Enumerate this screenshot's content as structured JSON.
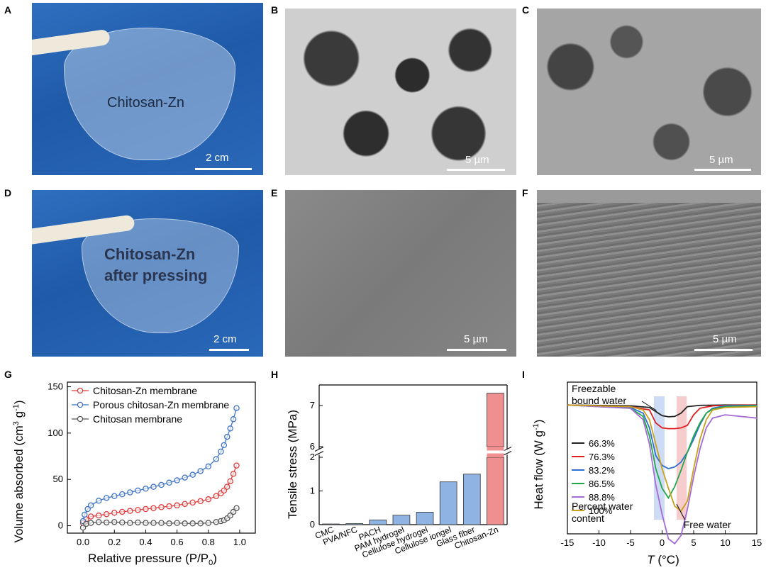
{
  "panel_labels": {
    "A": "A",
    "B": "B",
    "C": "C",
    "D": "D",
    "E": "E",
    "F": "F",
    "G": "G",
    "H": "H",
    "I": "I"
  },
  "photo_a": {
    "text": "Chitosan-Zn",
    "scale": "2 cm"
  },
  "photo_d": {
    "line1": "Chitosan-Zn",
    "line2": "after pressing",
    "scale": "2 cm"
  },
  "sem_b": {
    "scale": "5 µm"
  },
  "sem_c": {
    "scale": "5 µm"
  },
  "sem_e": {
    "scale": "5 µm"
  },
  "sem_f": {
    "scale": "5 µm"
  },
  "colors": {
    "red": "#e03c3c",
    "blue": "#3f74c6",
    "gray": "#555555",
    "bar_blue": "#8fb4e3",
    "bar_red": "#ef8f8f"
  },
  "chart_data": [
    {
      "type": "scatter",
      "panel": "G",
      "xlabel": "Relative pressure (P/P",
      "xlabel_sub": "0",
      "xlabel_end": ")",
      "ylabel": "Volume absorbed (cm",
      "ylabel_sup": "3",
      "ylabel_mid": " g",
      "ylabel_sup2": "-1",
      "ylabel_end": ")",
      "xlim": [
        -0.1,
        1.1
      ],
      "ylim": [
        -8,
        155
      ],
      "xticks": [
        "0.0",
        "0.2",
        "0.4",
        "0.6",
        "0.8",
        "1.0"
      ],
      "xtick_values": [
        0,
        0.2,
        0.4,
        0.6,
        0.8,
        1.0
      ],
      "yticks": [
        "0",
        "50",
        "100",
        "150"
      ],
      "ytick_values": [
        0,
        50,
        100,
        150
      ],
      "series": [
        {
          "name": "Chitosan-Zn membrane",
          "color": "#e03c3c",
          "x": [
            0,
            0.02,
            0.05,
            0.1,
            0.15,
            0.2,
            0.25,
            0.3,
            0.35,
            0.4,
            0.45,
            0.5,
            0.55,
            0.6,
            0.65,
            0.7,
            0.75,
            0.8,
            0.85,
            0.88,
            0.9,
            0.92,
            0.94,
            0.96,
            0.98
          ],
          "y": [
            3,
            7,
            10,
            11,
            12.5,
            14,
            15,
            16,
            17,
            18,
            19,
            20,
            21,
            22,
            23.5,
            25,
            26.5,
            28.5,
            32,
            35,
            38,
            42,
            48,
            56,
            65
          ]
        },
        {
          "name": "Porous chitosan-Zn membrane",
          "color": "#3f74c6",
          "x": [
            0,
            0.01,
            0.03,
            0.05,
            0.1,
            0.15,
            0.2,
            0.25,
            0.3,
            0.35,
            0.4,
            0.45,
            0.5,
            0.55,
            0.6,
            0.65,
            0.7,
            0.75,
            0.8,
            0.85,
            0.88,
            0.9,
            0.92,
            0.94,
            0.96,
            0.98
          ],
          "y": [
            5,
            12,
            18,
            22,
            27,
            30,
            32,
            34,
            36,
            38,
            40,
            42,
            44,
            46.5,
            49,
            52,
            55,
            59,
            64,
            72,
            80,
            87,
            96,
            105,
            115,
            127
          ]
        },
        {
          "name": "Chitosan membrane",
          "color": "#555555",
          "x": [
            0,
            0.02,
            0.05,
            0.1,
            0.15,
            0.2,
            0.25,
            0.3,
            0.35,
            0.4,
            0.45,
            0.5,
            0.55,
            0.6,
            0.65,
            0.7,
            0.75,
            0.8,
            0.85,
            0.88,
            0.9,
            0.92,
            0.94,
            0.96,
            0.98
          ],
          "y": [
            -2,
            2,
            3,
            4,
            3.5,
            4,
            3.5,
            3,
            3.5,
            3,
            3,
            3,
            2.5,
            3,
            2.5,
            2.5,
            2.5,
            3,
            4,
            5,
            6,
            8,
            11,
            15,
            19
          ]
        }
      ]
    },
    {
      "type": "bar",
      "panel": "H",
      "ylabel": "Tensile stress (MPa)",
      "categories": [
        "CMC",
        "PVA/NFC",
        "PACH",
        "PAM hydrogel",
        "Cellulose hydrogel",
        "Cellulose iongel",
        "Glass fiber",
        "Chitosan-Zn"
      ],
      "values": [
        0.02,
        0.03,
        0.14,
        0.28,
        0.37,
        1.27,
        1.5,
        7.3
      ],
      "colors": [
        "#8fb4e3",
        "#8fb4e3",
        "#8fb4e3",
        "#8fb4e3",
        "#8fb4e3",
        "#8fb4e3",
        "#8fb4e3",
        "#ef8f8f"
      ],
      "ylim_lower": [
        0,
        2
      ],
      "ylim_upper": [
        6,
        7.5
      ],
      "yticks": [
        "0",
        "1",
        "2",
        "6",
        "7"
      ],
      "ytick_values": [
        0,
        1,
        2,
        6,
        7
      ],
      "axis_break": true
    },
    {
      "type": "line",
      "panel": "I",
      "xlabel_italic": "T",
      "xlabel_rest": " (°C)",
      "ylabel": "Heat flow (W g",
      "ylabel_sup": "-1",
      "ylabel_end": ")",
      "xlim": [
        -15,
        15
      ],
      "xticks": [
        "-15",
        "-10",
        "-5",
        "0",
        "5",
        "10",
        "15"
      ],
      "xtick_values": [
        -15,
        -10,
        -5,
        0,
        5,
        10,
        15
      ],
      "annotations": {
        "bound": "Freezable",
        "bound2": "bound water",
        "free": "Free water",
        "legend_title1": "Percent water",
        "legend_title2": "content"
      },
      "series": [
        {
          "name": "66.3%",
          "color": "#222222",
          "x": [
            -15,
            -5,
            -2,
            -1,
            0,
            1,
            2,
            3,
            4,
            6,
            10,
            15
          ],
          "y": [
            0.1,
            0.15,
            0.25,
            0.5,
            0.75,
            0.82,
            0.8,
            0.6,
            0.2,
            0.12,
            0.1,
            0.1
          ]
        },
        {
          "name": "76.3%",
          "color": "#e02020",
          "x": [
            -15,
            -5,
            -2,
            -1,
            0,
            1,
            2,
            3,
            4,
            5,
            6,
            8,
            10,
            15
          ],
          "y": [
            0.1,
            0.2,
            0.4,
            1.2,
            1.5,
            1.55,
            1.55,
            1.5,
            1.35,
            0.7,
            0.3,
            0.15,
            0.12,
            0.1
          ]
        },
        {
          "name": "83.2%",
          "color": "#2e6fd1",
          "x": [
            -15,
            -5,
            -3,
            -2,
            -1,
            0,
            1,
            2,
            3,
            4,
            5,
            6,
            7,
            8,
            10,
            15
          ],
          "y": [
            0.1,
            0.25,
            0.6,
            1.5,
            3.2,
            3.8,
            4.0,
            3.9,
            3.6,
            3.0,
            2.2,
            1.3,
            0.6,
            0.3,
            0.15,
            0.12
          ]
        },
        {
          "name": "86.5%",
          "color": "#1fa84a",
          "x": [
            -15,
            -5,
            -3,
            -2,
            -1,
            0,
            1,
            2,
            3,
            4,
            5,
            6,
            7,
            8,
            10,
            15
          ],
          "y": [
            0.1,
            0.3,
            0.8,
            2.0,
            4.0,
            5.2,
            5.8,
            5.1,
            4.1,
            3.0,
            2.0,
            1.2,
            0.6,
            0.35,
            0.2,
            0.15
          ]
        },
        {
          "name": "88.8%",
          "color": "#a46bd6",
          "x": [
            -15,
            -5,
            -3,
            -2,
            -1,
            0,
            1,
            2,
            3,
            4,
            5,
            6,
            7,
            8,
            10,
            15
          ],
          "y": [
            0.1,
            0.3,
            1.0,
            2.5,
            5.0,
            6.8,
            8.3,
            8.6,
            8.1,
            6.5,
            4.5,
            2.8,
            1.5,
            0.9,
            0.7,
            0.9
          ]
        },
        {
          "name": "100%",
          "color": "#c9a11d",
          "x": [
            -15,
            -5,
            -3,
            -2,
            -1,
            0,
            1,
            2,
            3,
            4,
            5,
            6,
            7,
            8,
            10,
            15
          ],
          "y": [
            0.1,
            0.2,
            0.4,
            1.0,
            2.5,
            4.0,
            5.2,
            6.3,
            6.6,
            6.0,
            4.0,
            2.2,
            1.0,
            0.4,
            0.25,
            0.2
          ]
        }
      ]
    }
  ]
}
